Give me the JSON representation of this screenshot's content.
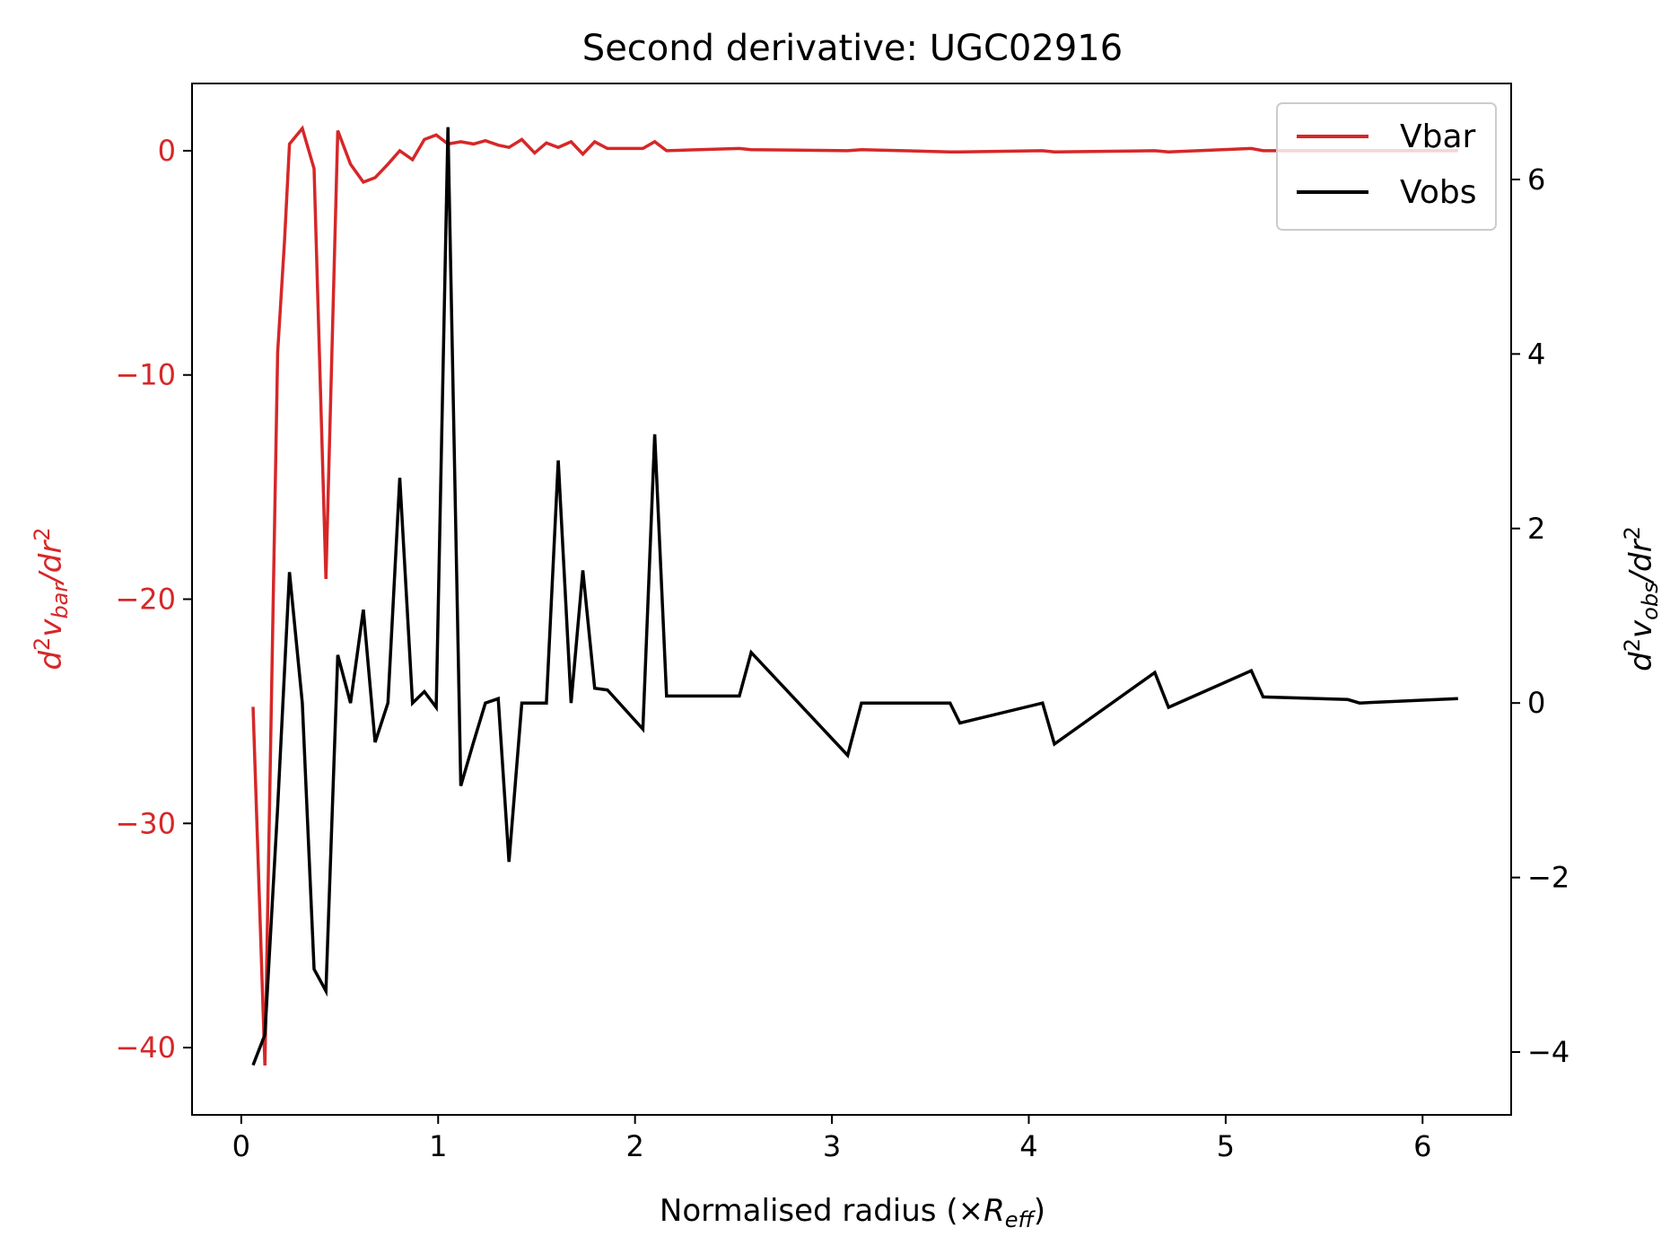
{
  "chart_data": {
    "type": "line",
    "title": "Second derivative: UGC02916",
    "xlabel": {
      "prefix": "Normalised radius (×",
      "symbol": "R",
      "sub": "eff",
      "suffix": ")"
    },
    "ylabel_left": {
      "d": "d",
      "exp": "2",
      "v": "v",
      "sub": "bar",
      "tail": "/dr",
      "exp2": "2"
    },
    "ylabel_right": {
      "d": "d",
      "exp": "2",
      "v": "v",
      "sub": "obs",
      "tail": "/dr",
      "exp2": "2"
    },
    "xlim": [
      -0.25,
      6.45
    ],
    "ylim_left": [
      -43,
      3
    ],
    "ylim_right": [
      -4.72,
      7.1
    ],
    "x_ticks": [
      0,
      1,
      2,
      3,
      4,
      5,
      6
    ],
    "x_tick_labels": [
      "0",
      "1",
      "2",
      "3",
      "4",
      "5",
      "6"
    ],
    "y_left_ticks": [
      0,
      -10,
      -20,
      -30,
      -40
    ],
    "y_left_tick_labels": [
      "0",
      "−10",
      "−20",
      "−30",
      "−40"
    ],
    "y_right_ticks": [
      6,
      4,
      2,
      0,
      -2,
      -4
    ],
    "y_right_tick_labels": [
      "6",
      "4",
      "2",
      "0",
      "−2",
      "−4"
    ],
    "colors": {
      "left_axis": "#d62728",
      "vbar": "#d62728",
      "vobs": "#000000"
    },
    "legend": {
      "placement": "upper right",
      "entries": [
        {
          "label": "Vbar",
          "color": "#d62728"
        },
        {
          "label": "Vobs",
          "color": "#000000"
        }
      ]
    },
    "series": [
      {
        "name": "Vbar",
        "axis": "left",
        "color": "#d62728",
        "points": [
          [
            0.06,
            -24.8
          ],
          [
            0.12,
            -40.8
          ],
          [
            0.185,
            -9.0
          ],
          [
            0.22,
            -4.0
          ],
          [
            0.245,
            0.3
          ],
          [
            0.31,
            1.0
          ],
          [
            0.37,
            -0.8
          ],
          [
            0.43,
            -19.1
          ],
          [
            0.49,
            0.9
          ],
          [
            0.555,
            -0.6
          ],
          [
            0.62,
            -1.4
          ],
          [
            0.68,
            -1.2
          ],
          [
            0.745,
            -0.6
          ],
          [
            0.805,
            0.0
          ],
          [
            0.87,
            -0.4
          ],
          [
            0.93,
            0.5
          ],
          [
            0.99,
            0.7
          ],
          [
            1.05,
            0.3
          ],
          [
            1.115,
            0.4
          ],
          [
            1.18,
            0.3
          ],
          [
            1.24,
            0.45
          ],
          [
            1.305,
            0.25
          ],
          [
            1.36,
            0.15
          ],
          [
            1.425,
            0.5
          ],
          [
            1.49,
            -0.1
          ],
          [
            1.55,
            0.35
          ],
          [
            1.61,
            0.15
          ],
          [
            1.675,
            0.4
          ],
          [
            1.735,
            -0.15
          ],
          [
            1.795,
            0.4
          ],
          [
            1.86,
            0.1
          ],
          [
            2.04,
            0.1
          ],
          [
            2.1,
            0.4
          ],
          [
            2.16,
            0.0
          ],
          [
            2.53,
            0.1
          ],
          [
            2.59,
            0.05
          ],
          [
            3.08,
            0.0
          ],
          [
            3.15,
            0.05
          ],
          [
            3.6,
            -0.05
          ],
          [
            3.65,
            -0.05
          ],
          [
            4.07,
            0.0
          ],
          [
            4.13,
            -0.05
          ],
          [
            4.64,
            0.0
          ],
          [
            4.71,
            -0.05
          ],
          [
            5.13,
            0.1
          ],
          [
            5.19,
            0.0
          ],
          [
            5.62,
            0.0
          ],
          [
            5.68,
            0.0
          ],
          [
            6.18,
            0.0
          ]
        ]
      },
      {
        "name": "Vobs",
        "axis": "right",
        "color": "#000000",
        "points": [
          [
            0.06,
            -4.15
          ],
          [
            0.12,
            -3.8
          ],
          [
            0.185,
            -1.2
          ],
          [
            0.245,
            1.5
          ],
          [
            0.31,
            0.0
          ],
          [
            0.37,
            -3.05
          ],
          [
            0.43,
            -3.3
          ],
          [
            0.49,
            0.55
          ],
          [
            0.555,
            0.0
          ],
          [
            0.62,
            1.07
          ],
          [
            0.68,
            -0.45
          ],
          [
            0.745,
            0.0
          ],
          [
            0.805,
            2.58
          ],
          [
            0.87,
            0.0
          ],
          [
            0.93,
            0.13
          ],
          [
            0.99,
            -0.05
          ],
          [
            1.05,
            6.6
          ],
          [
            1.115,
            -0.95
          ],
          [
            1.18,
            -0.45
          ],
          [
            1.24,
            0.0
          ],
          [
            1.305,
            0.05
          ],
          [
            1.36,
            -1.82
          ],
          [
            1.425,
            0.0
          ],
          [
            1.55,
            0.0
          ],
          [
            1.61,
            2.78
          ],
          [
            1.675,
            0.0
          ],
          [
            1.735,
            1.52
          ],
          [
            1.795,
            0.17
          ],
          [
            1.86,
            0.15
          ],
          [
            2.04,
            -0.3
          ],
          [
            2.1,
            3.08
          ],
          [
            2.16,
            0.08
          ],
          [
            2.53,
            0.08
          ],
          [
            2.59,
            0.58
          ],
          [
            3.08,
            -0.6
          ],
          [
            3.15,
            0.0
          ],
          [
            3.6,
            0.0
          ],
          [
            3.65,
            -0.23
          ],
          [
            4.07,
            0.0
          ],
          [
            4.13,
            -0.47
          ],
          [
            4.64,
            0.35
          ],
          [
            4.71,
            -0.05
          ],
          [
            5.13,
            0.37
          ],
          [
            5.19,
            0.07
          ],
          [
            5.62,
            0.04
          ],
          [
            5.68,
            0.0
          ],
          [
            6.18,
            0.05
          ]
        ]
      }
    ]
  }
}
